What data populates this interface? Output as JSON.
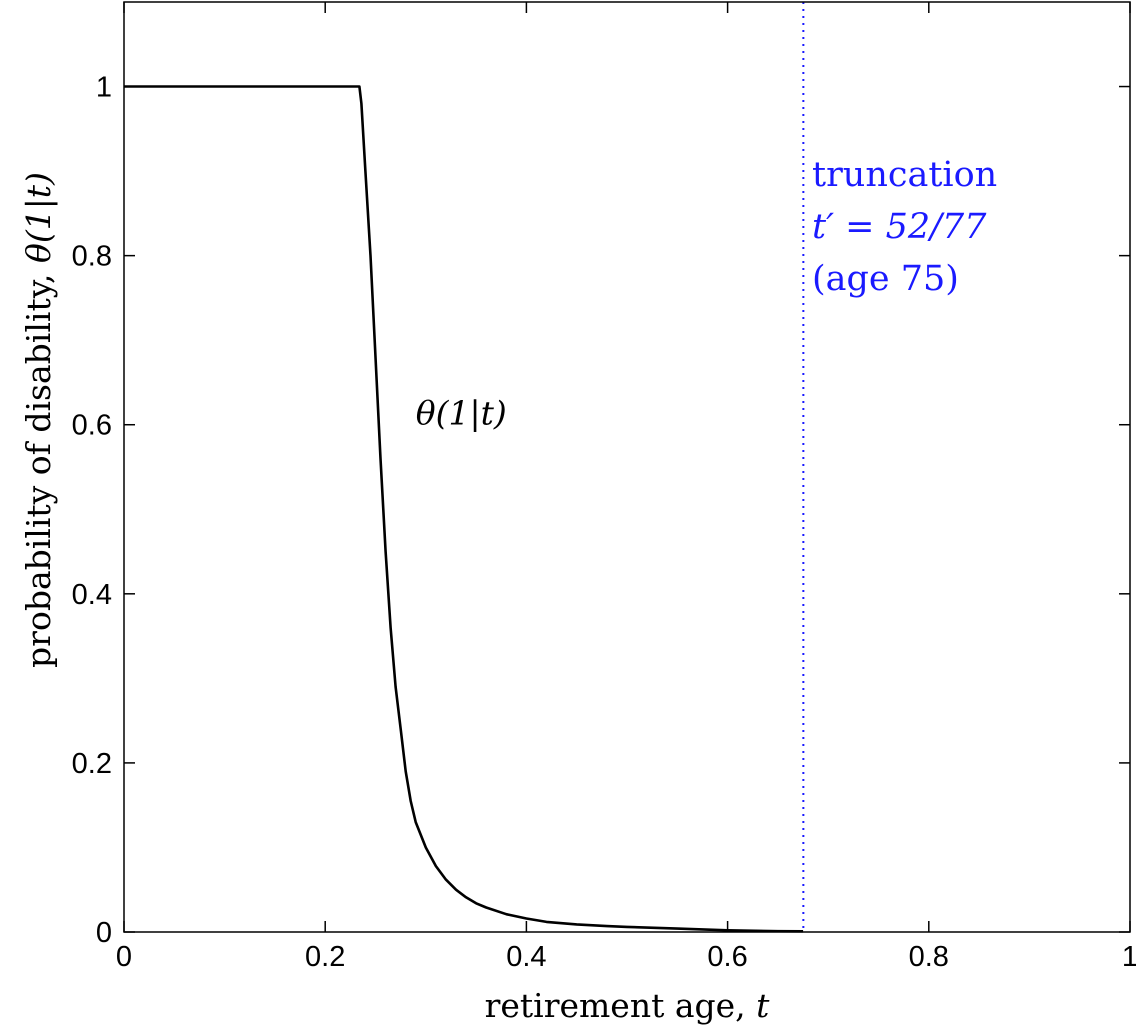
{
  "chart_data": {
    "type": "line",
    "xlabel_text": "retirement age, ",
    "xlabel_var": "t",
    "ylabel_text": "probability of disability, ",
    "ylabel_math": "θ(1|t)",
    "xlim": [
      0,
      1
    ],
    "ylim": [
      0,
      1.1
    ],
    "xticks": [
      0,
      0.2,
      0.4,
      0.6,
      0.8,
      1
    ],
    "xtick_labels": [
      "0",
      "0.2",
      "0.4",
      "0.6",
      "0.8",
      "1"
    ],
    "yticks": [
      0,
      0.2,
      0.4,
      0.6,
      0.8,
      1
    ],
    "ytick_labels": [
      "0",
      "0.2",
      "0.4",
      "0.6",
      "0.8",
      "1"
    ],
    "grid": false,
    "series": [
      {
        "label": "θ(1|t)",
        "label_at": [
          0.29,
          0.6
        ],
        "color": "#000000",
        "x": [
          0,
          0.234,
          0.236,
          0.24,
          0.245,
          0.25,
          0.255,
          0.26,
          0.265,
          0.27,
          0.275,
          0.28,
          0.285,
          0.29,
          0.3,
          0.31,
          0.32,
          0.33,
          0.34,
          0.35,
          0.36,
          0.38,
          0.4,
          0.42,
          0.45,
          0.48,
          0.5,
          0.55,
          0.6,
          0.65,
          0.675
        ],
        "y": [
          1,
          1,
          0.98,
          0.9,
          0.8,
          0.68,
          0.56,
          0.45,
          0.36,
          0.29,
          0.24,
          0.19,
          0.155,
          0.13,
          0.1,
          0.078,
          0.062,
          0.05,
          0.041,
          0.034,
          0.029,
          0.021,
          0.016,
          0.012,
          0.009,
          0.007,
          0.006,
          0.004,
          0.002,
          0.001,
          0.0008
        ]
      }
    ],
    "vline": {
      "x": 0.6753,
      "style": "dotted",
      "color": "#1a1aff",
      "label_lines": [
        "truncation",
        "t′ = 52/77",
        "(age 75)"
      ]
    }
  }
}
